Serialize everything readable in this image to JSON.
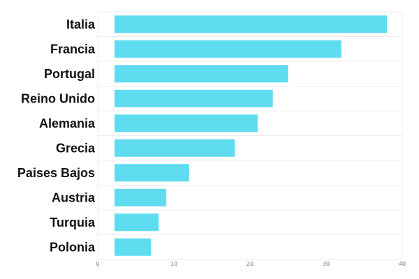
{
  "chart_data": {
    "type": "bar",
    "orientation": "horizontal",
    "categories": [
      "Italia",
      "Francia",
      "Portugal",
      "Reino Unido",
      "Alemania",
      "Grecia",
      "Paises Bajos",
      "Austria",
      "Turquia",
      "Polonia"
    ],
    "values": [
      38,
      32,
      25,
      23,
      21,
      18,
      12,
      9,
      8,
      7
    ],
    "xlim": [
      0,
      40
    ],
    "xticks": [
      "0",
      "10",
      "20",
      "30",
      "40"
    ],
    "grid": true,
    "bar_color": "#5fdcf0"
  }
}
